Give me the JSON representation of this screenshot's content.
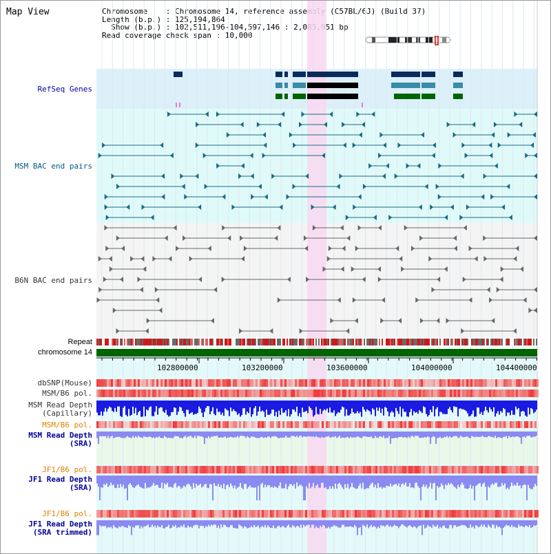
{
  "title": "Map View",
  "info": {
    "chromosome": "Chromosome    : Chromosome 14, reference assembly (C57BL/6J) (Build 37)",
    "length": "Length (b.p.) : 125,194,864",
    "show": "  Show (b.p.) : 102,511,196-104,597,146 : 2,085,951 bp",
    "coverage": "Read coverage check span : 10,000"
  },
  "tracks": {
    "refseq": "RefSeq Genes",
    "msm_bac": "MSM BAC end pairs",
    "b6n_bac": "B6N BAC end pairs",
    "repeat": "Repeat",
    "chrom": "chromosome 14",
    "dbsnp": "dbSNP(Mouse)",
    "msm_b6_pol": "MSM/B6 pol.",
    "msm_depth_cap_1": "MSM Read Depth",
    "msm_depth_cap_2": "(Capillary)",
    "msm_b6_pol2": "MSM/B6 pol.",
    "msm_depth_sra_1": "MSM Read Depth",
    "msm_depth_sra_2": "(SRA)",
    "jf1_b6_pol": "JF1/B6 pol.",
    "jf1_depth_sra_1": "JF1 Read Depth",
    "jf1_depth_sra_2": "(SRA)",
    "jf1_b6_pol2": "JF1/B6 pol.",
    "jf1_depth_tr_1": "JF1 Read Depth",
    "jf1_depth_tr_2": "(SRA trimmed)"
  },
  "axis": {
    "ticks": [
      "102800000",
      "103200000",
      "103600000",
      "104000000",
      "104400000"
    ]
  },
  "colors": {
    "refseq_bg": "#dcf0fa",
    "bac_bg": "#e0fafa",
    "highlight": "#f8d8f0",
    "msm_gene": "#0a2a5a",
    "msm_bac": "#1a6a80",
    "b6n_bac": "#666666",
    "chrom_bar": "#006400",
    "depth_blue": "#1a1ae0",
    "depth_light": "#8a8af0",
    "pol_red": "#e02020"
  }
}
